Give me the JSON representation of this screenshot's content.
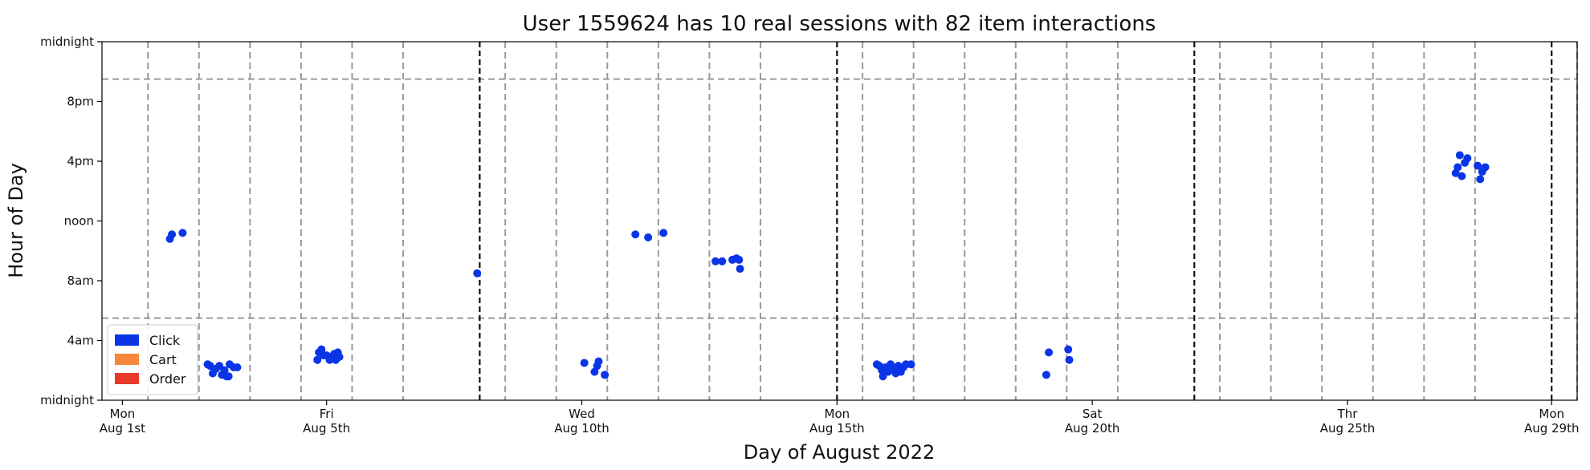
{
  "chart_data": {
    "type": "scatter",
    "title": "User 1559624 has 10 real sessions with 82 item interactions",
    "xlabel": "Day of August 2022",
    "ylabel": "Hour of Day",
    "x_unit": "day of August 2022 (fractional)",
    "y_unit": "hour of day",
    "xlim": [
      -0.4,
      28.5
    ],
    "ylim": [
      0,
      24
    ],
    "x_ticks": [
      {
        "value": 0,
        "line1": "Mon",
        "line2": "Aug 1st"
      },
      {
        "value": 4,
        "line1": "Fri",
        "line2": "Aug 5th"
      },
      {
        "value": 9,
        "line1": "Wed",
        "line2": "Aug 10th"
      },
      {
        "value": 14,
        "line1": "Mon",
        "line2": "Aug 15th"
      },
      {
        "value": 19,
        "line1": "Sat",
        "line2": "Aug 20th"
      },
      {
        "value": 24,
        "line1": "Thr",
        "line2": "Aug 25th"
      },
      {
        "value": 28,
        "line1": "Mon",
        "line2": "Aug 29th"
      }
    ],
    "y_ticks": [
      {
        "value": 0,
        "label": "midnight"
      },
      {
        "value": 4,
        "label": "4am"
      },
      {
        "value": 8,
        "label": "8am"
      },
      {
        "value": 12,
        "label": "noon"
      },
      {
        "value": 16,
        "label": "4pm"
      },
      {
        "value": 20,
        "label": "8pm"
      },
      {
        "value": 24,
        "label": "midnight"
      }
    ],
    "grid": {
      "dashed_gray_vertical": [
        0.5,
        1.5,
        2.5,
        3.5,
        4.5,
        5.5,
        7.5,
        8.5,
        9.5,
        10.5,
        11.5,
        12.5,
        14.5,
        15.5,
        16.5,
        17.5,
        18.5,
        19.5,
        21.5,
        22.5,
        23.5,
        24.5,
        25.5,
        26.5,
        28.5
      ],
      "dashed_black_vertical": [
        7,
        14,
        21,
        28
      ],
      "dashed_gray_horizontal": [
        5.5,
        21.5
      ]
    },
    "legend": {
      "position": "lower-left",
      "entries": [
        {
          "label": "Click",
          "color": "#0a35e6"
        },
        {
          "label": "Cart",
          "color": "#f5883a"
        },
        {
          "label": "Order",
          "color": "#e8392a"
        }
      ]
    },
    "series": [
      {
        "name": "Click",
        "color": "#0a35e6",
        "points": [
          [
            0.93,
            10.8
          ],
          [
            0.97,
            11.1
          ],
          [
            1.18,
            11.2
          ],
          [
            1.67,
            2.4
          ],
          [
            1.72,
            2.3
          ],
          [
            1.77,
            1.8
          ],
          [
            1.83,
            2.1
          ],
          [
            1.9,
            2.3
          ],
          [
            1.95,
            1.7
          ],
          [
            2.0,
            2.0
          ],
          [
            2.04,
            1.6
          ],
          [
            2.08,
            1.6
          ],
          [
            2.1,
            2.4
          ],
          [
            2.18,
            2.2
          ],
          [
            2.25,
            2.2
          ],
          [
            3.82,
            2.7
          ],
          [
            3.85,
            3.2
          ],
          [
            3.9,
            3.4
          ],
          [
            3.94,
            3.0
          ],
          [
            4.0,
            3.0
          ],
          [
            4.06,
            2.7
          ],
          [
            4.1,
            2.9
          ],
          [
            4.15,
            3.1
          ],
          [
            4.18,
            2.7
          ],
          [
            4.22,
            3.2
          ],
          [
            4.25,
            2.9
          ],
          [
            6.95,
            8.5
          ],
          [
            9.05,
            2.5
          ],
          [
            9.25,
            1.9
          ],
          [
            9.3,
            2.3
          ],
          [
            9.33,
            2.6
          ],
          [
            9.45,
            1.7
          ],
          [
            10.05,
            11.1
          ],
          [
            10.3,
            10.9
          ],
          [
            10.6,
            11.2
          ],
          [
            11.62,
            9.3
          ],
          [
            11.75,
            9.3
          ],
          [
            11.95,
            9.4
          ],
          [
            12.03,
            9.5
          ],
          [
            12.08,
            9.4
          ],
          [
            12.1,
            8.8
          ],
          [
            14.78,
            2.4
          ],
          [
            14.83,
            2.3
          ],
          [
            14.88,
            2.0
          ],
          [
            14.9,
            1.6
          ],
          [
            14.95,
            2.2
          ],
          [
            15.0,
            1.9
          ],
          [
            15.05,
            2.4
          ],
          [
            15.1,
            2.1
          ],
          [
            15.15,
            1.8
          ],
          [
            15.2,
            2.3
          ],
          [
            15.25,
            1.9
          ],
          [
            15.3,
            2.2
          ],
          [
            15.35,
            2.4
          ],
          [
            15.45,
            2.4
          ],
          [
            18.1,
            1.7
          ],
          [
            18.15,
            3.2
          ],
          [
            18.53,
            3.4
          ],
          [
            18.55,
            2.7
          ],
          [
            26.12,
            15.2
          ],
          [
            26.16,
            15.6
          ],
          [
            26.2,
            16.4
          ],
          [
            26.24,
            15.0
          ],
          [
            26.3,
            15.9
          ],
          [
            26.35,
            16.2
          ],
          [
            26.55,
            15.7
          ],
          [
            26.6,
            14.8
          ],
          [
            26.64,
            15.3
          ],
          [
            26.7,
            15.6
          ]
        ]
      }
    ]
  }
}
